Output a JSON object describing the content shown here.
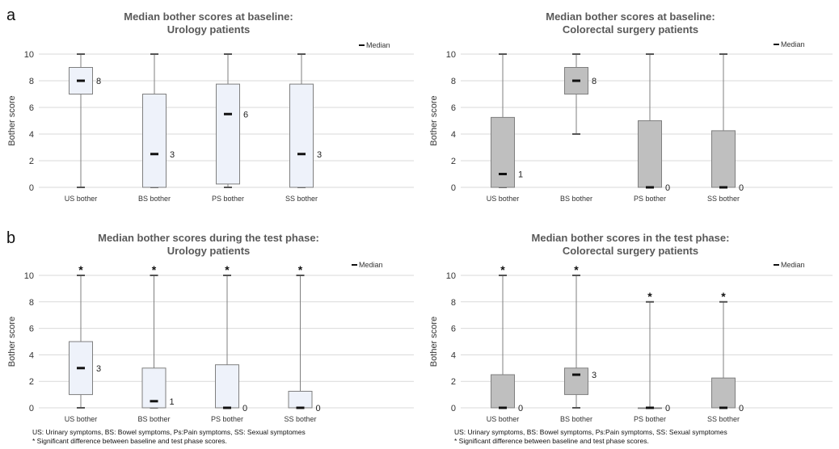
{
  "panel_labels": [
    "a",
    "b"
  ],
  "legend_median": "Median",
  "footnotes": [
    "US: Urinary symptoms, BS: Bowel symptoms, Ps:Pain symptoms, SS: Sexual symptomes",
    "* Significant difference between baseline and test phase scores."
  ],
  "colors": {
    "urology_box": "#eef2fa",
    "colorectal_box": "#bfbfbf",
    "whisker": "#7f7f7f",
    "median": "#111111",
    "grid": "#d9d9d9"
  },
  "chart_data": [
    {
      "type": "box",
      "panel": "a",
      "title_lines": [
        "Median bother scores at baseline:",
        "Urology patients"
      ],
      "ylabel": "Bother score",
      "ylim": [
        0,
        10
      ],
      "yticks": [
        0,
        2,
        4,
        6,
        8,
        10
      ],
      "grid": true,
      "legend_position": "top-right",
      "categories": [
        "US bother",
        "BS bother",
        "PS bother",
        "SS bother"
      ],
      "min": [
        0,
        0,
        0,
        0
      ],
      "q1": [
        7,
        0,
        0.25,
        0
      ],
      "median": [
        8,
        2.5,
        5.5,
        2.5
      ],
      "q3": [
        9,
        7,
        7.75,
        7.75
      ],
      "max": [
        10,
        10,
        10,
        10
      ],
      "median_labels": [
        "8",
        "3",
        "6",
        "3"
      ],
      "significant": [
        false,
        false,
        false,
        false
      ]
    },
    {
      "type": "box",
      "panel": "",
      "title_lines": [
        "Median bother scores at baseline:",
        "Colorectal surgery patients"
      ],
      "ylabel": "Bother score",
      "ylim": [
        0,
        10
      ],
      "yticks": [
        0,
        2,
        4,
        6,
        8,
        10
      ],
      "grid": true,
      "legend_position": "top-right",
      "categories": [
        "US bother",
        "BS bother",
        "PS bother",
        "SS bother"
      ],
      "min": [
        0,
        4,
        0,
        0
      ],
      "q1": [
        0,
        7,
        0,
        0
      ],
      "median": [
        1,
        8,
        0,
        0
      ],
      "q3": [
        5.25,
        9,
        5,
        4.25
      ],
      "max": [
        10,
        10,
        10,
        10
      ],
      "median_labels": [
        "1",
        "8",
        "0",
        "0"
      ],
      "significant": [
        false,
        false,
        false,
        false
      ]
    },
    {
      "type": "box",
      "panel": "b",
      "title_lines": [
        "Median bother scores during the test phase:",
        "Urology patients"
      ],
      "ylabel": "Bother score",
      "ylim": [
        0,
        10
      ],
      "yticks": [
        0,
        2,
        4,
        6,
        8,
        10
      ],
      "grid": true,
      "legend_position": "top-right",
      "categories": [
        "US bother",
        "BS bother",
        "PS bother",
        "SS bother"
      ],
      "min": [
        0,
        0,
        0,
        0
      ],
      "q1": [
        1,
        0,
        0,
        0
      ],
      "median": [
        3,
        0.5,
        0,
        0
      ],
      "q3": [
        5,
        3,
        3.25,
        1.25
      ],
      "max": [
        10,
        10,
        10,
        10
      ],
      "median_labels": [
        "3",
        "1",
        "0",
        "0"
      ],
      "significant": [
        true,
        true,
        true,
        true
      ]
    },
    {
      "type": "box",
      "panel": "",
      "title_lines": [
        "Median bother scores in the test phase:",
        "Colorectal surgery patients"
      ],
      "ylabel": "Bother score",
      "ylim": [
        0,
        10
      ],
      "yticks": [
        0,
        2,
        4,
        6,
        8,
        10
      ],
      "grid": true,
      "legend_position": "top-right",
      "categories": [
        "US bother",
        "BS bother",
        "PS bother",
        "SS bother"
      ],
      "min": [
        0,
        0,
        0,
        0
      ],
      "q1": [
        0,
        1,
        0,
        0
      ],
      "median": [
        0,
        2.5,
        0,
        0
      ],
      "q3": [
        2.5,
        3,
        0,
        2.25
      ],
      "max": [
        10,
        10,
        8,
        8
      ],
      "median_labels": [
        "0",
        "3",
        "0",
        "0"
      ],
      "significant": [
        true,
        true,
        true,
        true
      ]
    }
  ]
}
